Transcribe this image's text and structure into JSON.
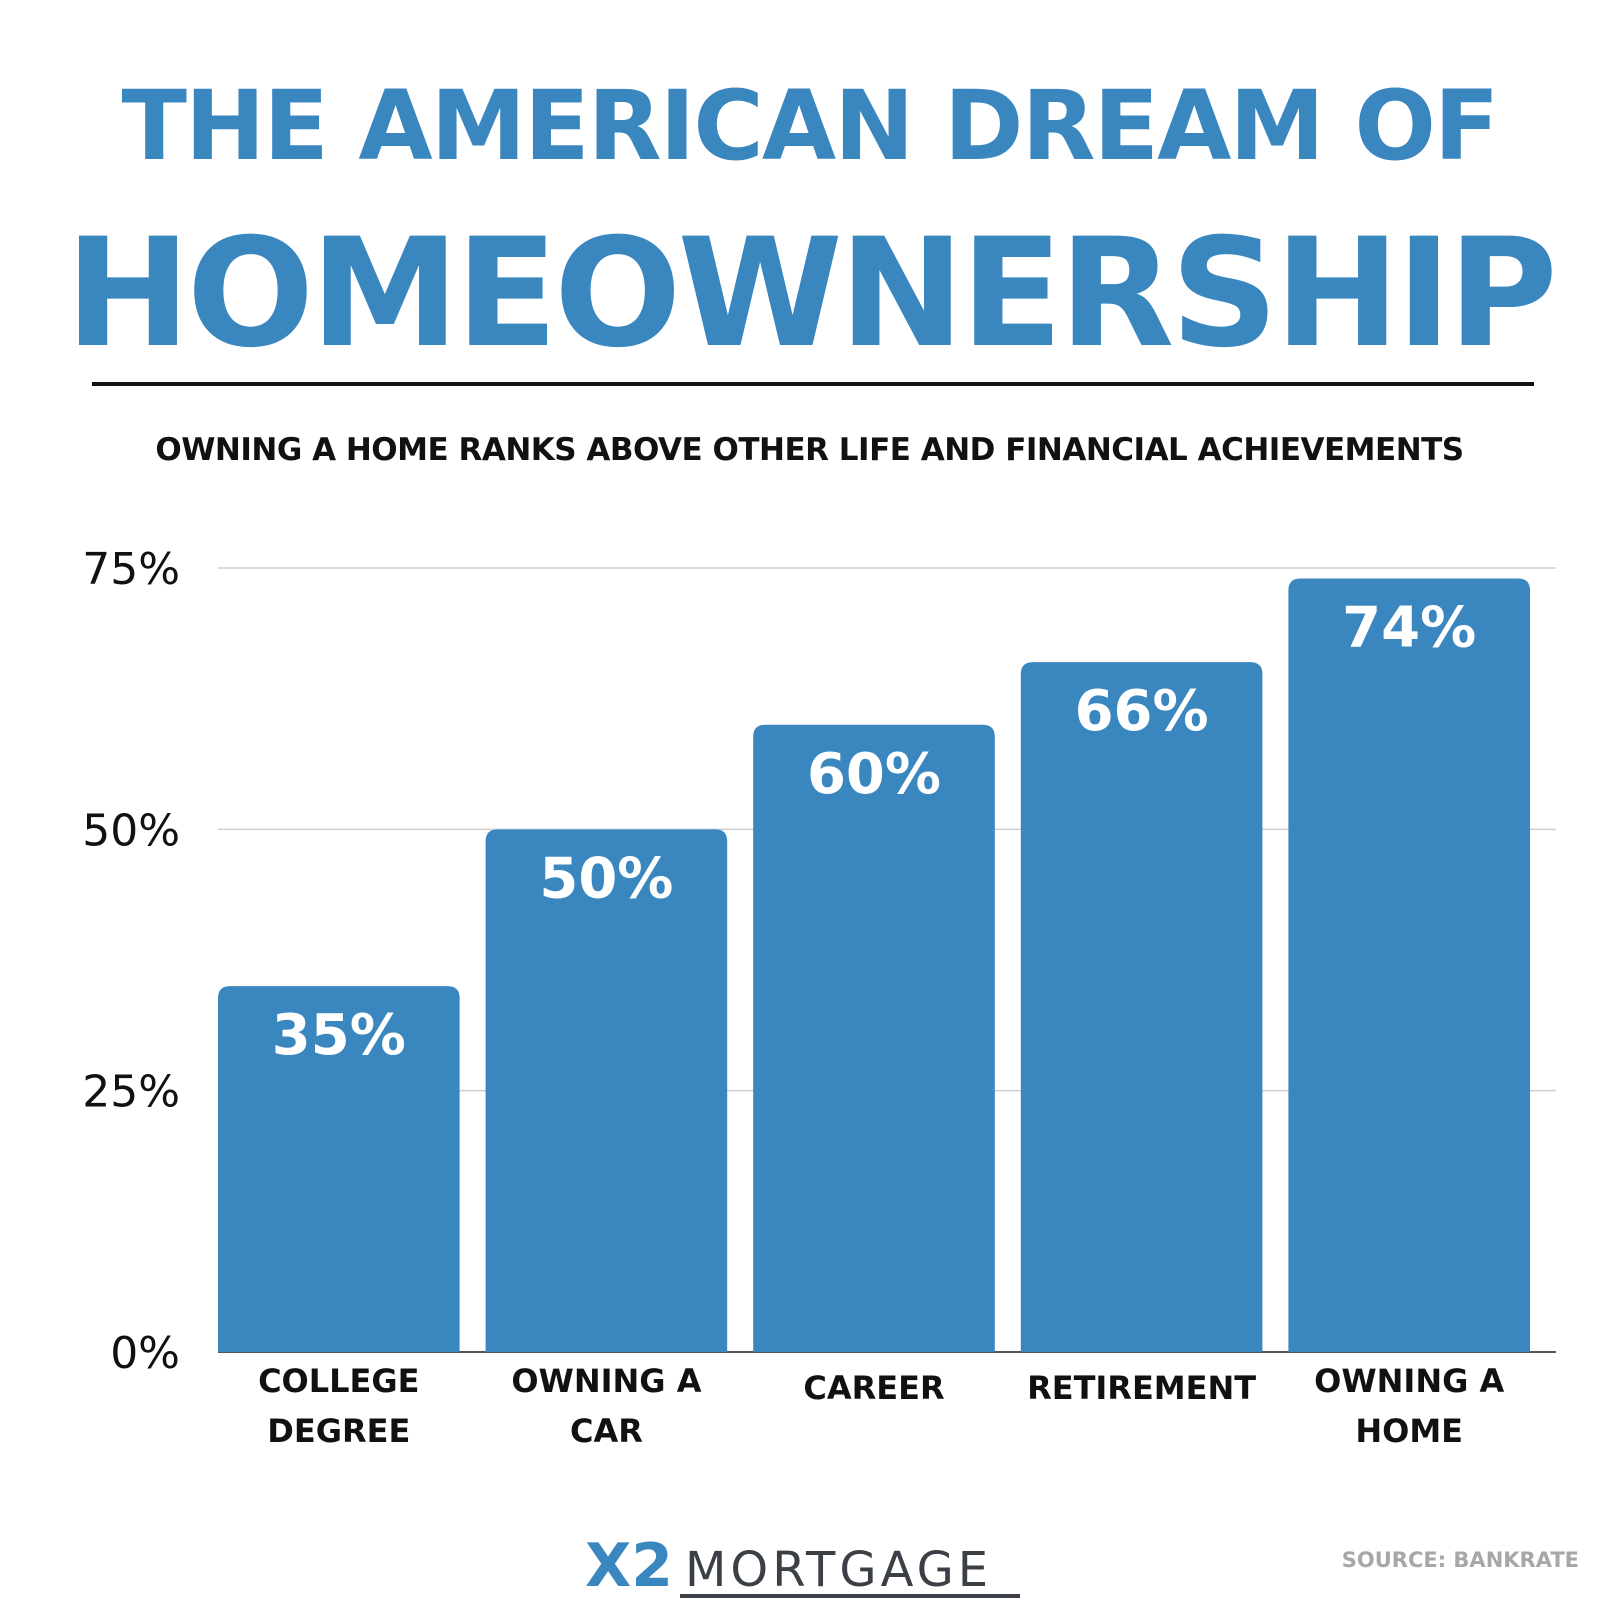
{
  "header": {
    "title_line1": "THE AMERICAN DREAM OF",
    "title_line2": "HOMEOWNERSHIP",
    "subtitle": "OWNING A HOME RANKS ABOVE OTHER LIFE AND FINANCIAL ACHIEVEMENTS"
  },
  "chart_data": {
    "type": "bar",
    "categories": [
      [
        "COLLEGE",
        "DEGREE"
      ],
      [
        "OWNING A",
        "CAR"
      ],
      [
        "CAREER"
      ],
      [
        "RETIREMENT"
      ],
      [
        "OWNING A",
        "HOME"
      ]
    ],
    "values": [
      35,
      50,
      60,
      66,
      74
    ],
    "data_labels": [
      "35%",
      "50%",
      "60%",
      "66%",
      "74%"
    ],
    "yticks": [
      0,
      25,
      50,
      75
    ],
    "ytick_labels": [
      "0%",
      "25%",
      "50%",
      "75%"
    ],
    "ylim": [
      0,
      75
    ],
    "grid": true,
    "bar_color": "#3a86bf",
    "label_color": "#ffffff"
  },
  "footer": {
    "logo_mark": "X2",
    "logo_text": "MORTGAGE",
    "source": "SOURCE: BANKRATE"
  },
  "colors": {
    "title": "#3a86bf",
    "logo_dark": "#3b3f46",
    "logo_blue": "#3a86bf",
    "source": "#a7a7a7"
  }
}
